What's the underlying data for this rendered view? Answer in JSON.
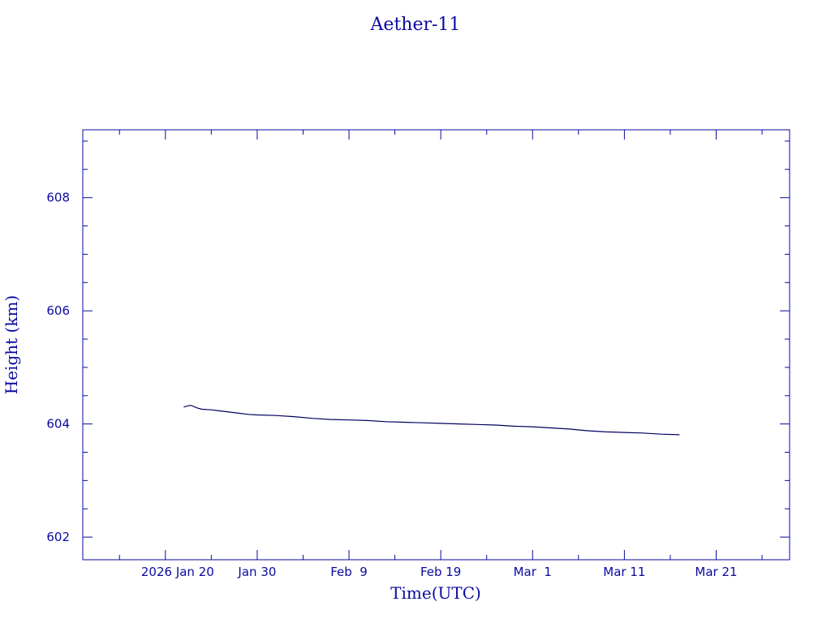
{
  "chart_data": {
    "type": "line",
    "title": "Aether-11",
    "xlabel": "Time(UTC)",
    "ylabel": "Height (km)",
    "xlim": [
      "2026-01-11",
      "2026-03-29"
    ],
    "ylim": [
      601.6,
      609.2
    ],
    "x_tick_labels": [
      "2026 Jan 20",
      "Jan 30",
      "Feb  9",
      "Feb 19",
      "Mar  1",
      "Mar 11",
      "Mar 21"
    ],
    "x_ticks": [
      "2026-01-20",
      "2026-01-30",
      "2026-02-09",
      "2026-02-19",
      "2026-03-01",
      "2026-03-11",
      "2026-03-21"
    ],
    "y_ticks": [
      602,
      604,
      606,
      608
    ],
    "y_tick_labels": [
      "602",
      "604",
      "606",
      "608"
    ],
    "grid": false,
    "colors": {
      "axis": "#0a0aa0",
      "line": "#000060",
      "text": "#0a0aa0"
    },
    "series": [
      {
        "x": [
          "2026-01-22",
          "2026-01-22T18:00",
          "2026-01-23T12:00",
          "2026-01-24",
          "2026-01-25",
          "2026-01-26",
          "2026-01-27",
          "2026-01-28",
          "2026-01-29",
          "2026-01-30",
          "2026-02-01",
          "2026-02-03",
          "2026-02-05",
          "2026-02-07",
          "2026-02-09",
          "2026-02-11",
          "2026-02-13",
          "2026-02-15",
          "2026-02-17",
          "2026-02-19",
          "2026-02-21",
          "2026-02-23",
          "2026-02-25",
          "2026-02-27",
          "2026-03-01",
          "2026-03-03",
          "2026-03-05",
          "2026-03-07",
          "2026-03-09",
          "2026-03-11",
          "2026-03-13",
          "2026-03-15",
          "2026-03-17"
        ],
        "values": [
          604.3,
          604.33,
          604.28,
          604.26,
          604.25,
          604.23,
          604.21,
          604.19,
          604.17,
          604.16,
          604.15,
          604.13,
          604.1,
          604.08,
          604.07,
          604.06,
          604.04,
          604.03,
          604.02,
          604.01,
          604.0,
          603.99,
          603.98,
          603.96,
          603.95,
          603.93,
          603.91,
          603.88,
          603.86,
          603.85,
          603.84,
          603.82,
          603.81
        ]
      }
    ]
  }
}
